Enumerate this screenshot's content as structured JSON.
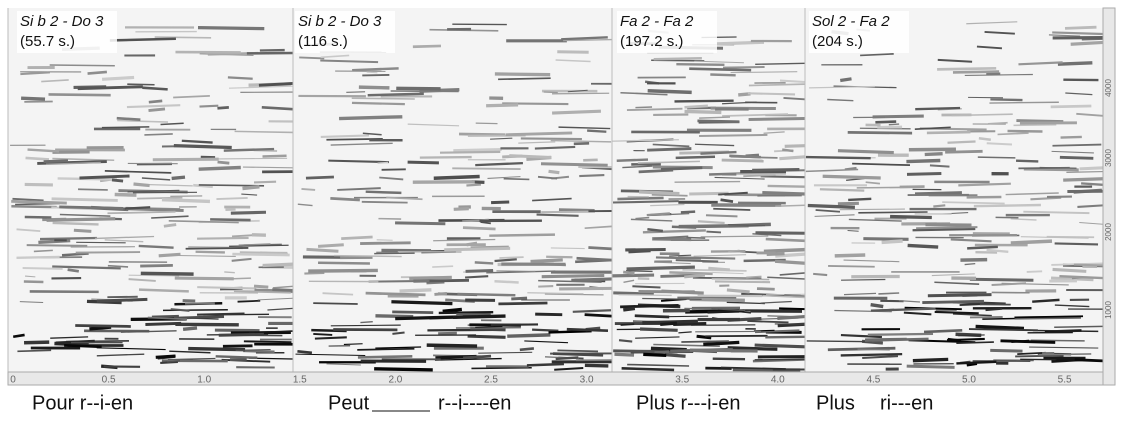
{
  "panels": [
    {
      "title": "Si b 2 - Do 3",
      "time": "(55.7 s.)"
    },
    {
      "title": "Si b 2 - Do 3",
      "time": "(116 s.)"
    },
    {
      "title": "Fa 2 - Fa 2",
      "time": "(197.2 s.)"
    },
    {
      "title": "Sol 2 - Fa 2",
      "time": "(204 s.)"
    }
  ],
  "x_axis": {
    "ticks": [
      "0",
      "0.5",
      "1.0",
      "1.5",
      "2.0",
      "2.5",
      "3.0",
      "3.5",
      "4.0",
      "4.5",
      "5.0",
      "5.5"
    ]
  },
  "y_axis": {
    "ticks": [
      "1000",
      "2000",
      "3000",
      "4000"
    ]
  },
  "lyrics": [
    "Pour r--i-en",
    "Peut",
    "r--i----en",
    "Plus r---i-en",
    "Plus",
    "ri---en"
  ]
}
